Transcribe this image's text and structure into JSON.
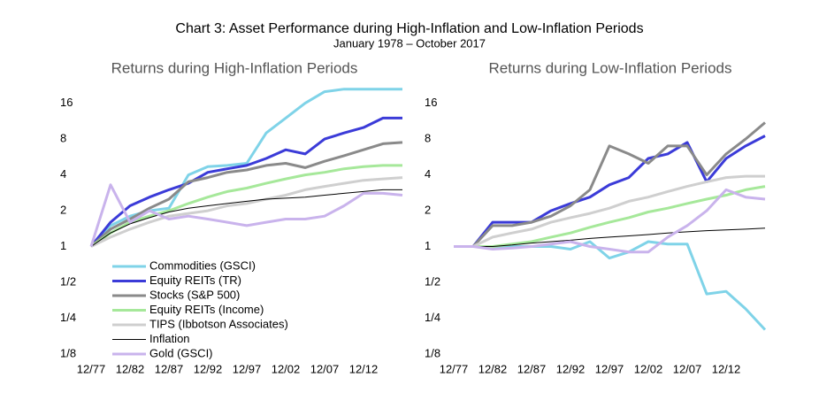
{
  "title": "Chart 3: Asset Performance during High-Inflation and Low-Inflation Periods",
  "subtitle": "January 1978 – October 2017",
  "chart_data": [
    {
      "type": "line",
      "title": "Returns during High-Inflation Periods",
      "log_scale": true,
      "legend": "lower left",
      "x": [
        0,
        0.5,
        1,
        1.5,
        2,
        2.5,
        3,
        3.5,
        4,
        4.5,
        5,
        5.5,
        6,
        6.5,
        7,
        7.5,
        8
      ],
      "xlim": [
        0,
        8
      ],
      "xticks": [
        {
          "value": 0,
          "label": "12/77"
        },
        {
          "value": 1,
          "label": "12/82"
        },
        {
          "value": 2,
          "label": "12/87"
        },
        {
          "value": 3,
          "label": "12/92"
        },
        {
          "value": 4,
          "label": "12/97"
        },
        {
          "value": 5,
          "label": "12/02"
        },
        {
          "value": 6,
          "label": "12/07"
        },
        {
          "value": 7,
          "label": "12/12"
        }
      ],
      "ylim": [
        0.125,
        22
      ],
      "yticks": [
        {
          "value": 0.125,
          "label": "1/8"
        },
        {
          "value": 0.25,
          "label": "1/4"
        },
        {
          "value": 0.5,
          "label": "1/2"
        },
        1,
        2,
        4,
        8,
        16
      ],
      "series": [
        {
          "name": "Commodities (GSCI)",
          "color": "#7fd3e8",
          "values": [
            1,
            1.5,
            1.8,
            2.0,
            2.1,
            4.0,
            4.7,
            4.8,
            5.0,
            9,
            12,
            16,
            20,
            21,
            21,
            21,
            21
          ]
        },
        {
          "name": "Equity REITs (TR)",
          "color": "#3b3bd8",
          "values": [
            1,
            1.6,
            2.2,
            2.6,
            3.0,
            3.4,
            4.2,
            4.5,
            4.8,
            5.5,
            6.5,
            6,
            8,
            9,
            10,
            12,
            12
          ]
        },
        {
          "name": "Stocks (S&P 500)",
          "color": "#8a8a8a",
          "values": [
            1,
            1.4,
            1.7,
            2.1,
            2.5,
            3.5,
            3.8,
            4.2,
            4.4,
            4.8,
            5.0,
            4.6,
            5.2,
            5.8,
            6.5,
            7.3,
            7.5
          ]
        },
        {
          "name": "Equity REITs (Income)",
          "color": "#a6e89a",
          "values": [
            1,
            1.3,
            1.6,
            1.8,
            2.0,
            2.3,
            2.6,
            2.9,
            3.1,
            3.4,
            3.7,
            4.0,
            4.2,
            4.5,
            4.7,
            4.8,
            4.8
          ]
        },
        {
          "name": "TIPS (Ibbotson Associates)",
          "color": "#cfcfcf",
          "values": [
            1,
            1.2,
            1.4,
            1.6,
            1.8,
            1.9,
            2.0,
            2.2,
            2.3,
            2.5,
            2.7,
            3.0,
            3.2,
            3.4,
            3.6,
            3.7,
            3.8
          ]
        },
        {
          "name": "Inflation",
          "color": "#000000",
          "values": [
            1,
            1.3,
            1.55,
            1.75,
            1.95,
            2.1,
            2.2,
            2.3,
            2.4,
            2.5,
            2.55,
            2.6,
            2.7,
            2.8,
            2.9,
            3.0,
            3.0
          ]
        },
        {
          "name": "Gold (GSCI)",
          "color": "#c9b3ec",
          "values": [
            1,
            3.3,
            1.6,
            2.0,
            1.7,
            1.8,
            1.7,
            1.6,
            1.5,
            1.6,
            1.7,
            1.7,
            1.8,
            2.2,
            2.8,
            2.8,
            2.7
          ]
        }
      ]
    },
    {
      "type": "line",
      "title": "Returns during Low-Inflation Periods",
      "log_scale": true,
      "x": [
        0,
        0.5,
        1,
        1.5,
        2,
        2.5,
        3,
        3.5,
        4,
        4.5,
        5,
        5.5,
        6,
        6.5,
        7,
        7.5,
        8
      ],
      "xlim": [
        0,
        8
      ],
      "xticks": [
        {
          "value": 0,
          "label": "12/77"
        },
        {
          "value": 1,
          "label": "12/82"
        },
        {
          "value": 2,
          "label": "12/87"
        },
        {
          "value": 3,
          "label": "12/92"
        },
        {
          "value": 4,
          "label": "12/97"
        },
        {
          "value": 5,
          "label": "12/02"
        },
        {
          "value": 6,
          "label": "12/07"
        },
        {
          "value": 7,
          "label": "12/12"
        }
      ],
      "ylim": [
        0.125,
        22
      ],
      "yticks": [
        {
          "value": 0.125,
          "label": "1/8"
        },
        {
          "value": 0.25,
          "label": "1/4"
        },
        {
          "value": 0.5,
          "label": "1/2"
        },
        1,
        2,
        4,
        8,
        16
      ],
      "series": [
        {
          "color": "#7fd3e8",
          "values": [
            1,
            1,
            1,
            1,
            1,
            1,
            0.95,
            1.1,
            0.8,
            0.9,
            1.1,
            1.05,
            1.05,
            0.4,
            0.42,
            0.3,
            0.2
          ]
        },
        {
          "color": "#3b3bd8",
          "values": [
            1,
            1,
            1.6,
            1.6,
            1.6,
            2.0,
            2.3,
            2.6,
            3.3,
            3.8,
            5.5,
            6,
            7.5,
            3.5,
            5.5,
            7,
            8.5
          ]
        },
        {
          "color": "#8a8a8a",
          "values": [
            1,
            1,
            1.5,
            1.5,
            1.6,
            1.8,
            2.2,
            3,
            7,
            6,
            5,
            7,
            7,
            4,
            6,
            8,
            11
          ]
        },
        {
          "color": "#a6e89a",
          "values": [
            1,
            1,
            1,
            1.05,
            1.1,
            1.2,
            1.3,
            1.45,
            1.6,
            1.75,
            1.95,
            2.1,
            2.3,
            2.5,
            2.7,
            3.0,
            3.2
          ]
        },
        {
          "color": "#cfcfcf",
          "values": [
            1,
            1,
            1.2,
            1.3,
            1.4,
            1.6,
            1.75,
            1.9,
            2.1,
            2.4,
            2.6,
            2.9,
            3.2,
            3.5,
            3.8,
            3.9,
            3.9
          ]
        },
        {
          "color": "#000000",
          "values": [
            1,
            1,
            1,
            1.03,
            1.07,
            1.1,
            1.13,
            1.17,
            1.2,
            1.23,
            1.26,
            1.3,
            1.33,
            1.36,
            1.38,
            1.4,
            1.43
          ]
        },
        {
          "color": "#c9b3ec",
          "values": [
            1,
            1,
            0.95,
            0.97,
            1.0,
            1.05,
            1.1,
            1.0,
            0.95,
            0.9,
            0.9,
            1.2,
            1.5,
            2,
            3,
            2.6,
            2.5
          ]
        }
      ]
    }
  ]
}
